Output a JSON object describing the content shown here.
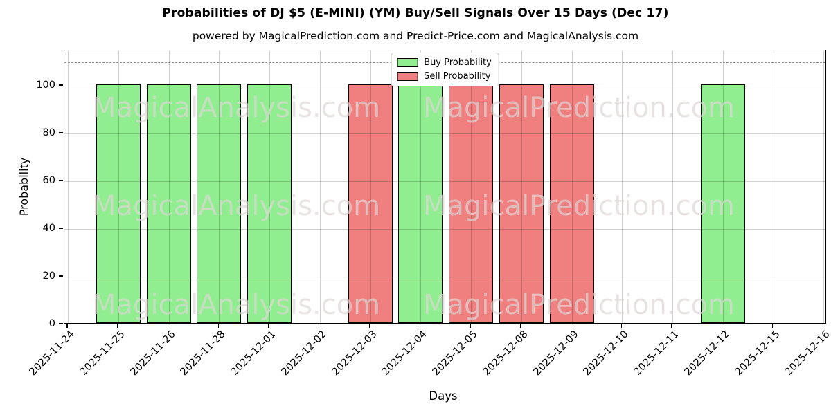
{
  "chart_data": {
    "type": "bar",
    "title": "Probabilities of DJ $5 (E-MINI) (YM) Buy/Sell Signals Over 15 Days (Dec 17)",
    "subtitle": "powered by MagicalPrediction.com and Predict-Price.com and MagicalAnalysis.com",
    "xlabel": "Days",
    "ylabel": "Probability",
    "categories": [
      "2025-11-24",
      "2025-11-25",
      "2025-11-26",
      "2025-11-28",
      "2025-12-01",
      "2025-12-02",
      "2025-12-03",
      "2025-12-04",
      "2025-12-05",
      "2025-12-08",
      "2025-12-09",
      "2025-12-10",
      "2025-12-11",
      "2025-12-12",
      "2025-12-15",
      "2025-12-16"
    ],
    "series": [
      {
        "name": "Buy Probability",
        "color": "#90EE90",
        "values": [
          null,
          100,
          100,
          100,
          100,
          null,
          null,
          100,
          null,
          null,
          null,
          null,
          null,
          100,
          null,
          null
        ]
      },
      {
        "name": "Sell Probability",
        "color": "#F08080",
        "values": [
          null,
          null,
          null,
          null,
          null,
          null,
          100,
          null,
          100,
          100,
          100,
          null,
          null,
          null,
          null,
          null
        ]
      }
    ],
    "yticks": [
      0,
      20,
      40,
      60,
      80,
      100
    ],
    "ylim": [
      0,
      114.8
    ],
    "threshold_line": {
      "y": 110,
      "style": "dashed",
      "color": "#8a8a8a"
    },
    "grid": true,
    "bar_edge_color": "#000000",
    "legend": {
      "position": "upper center"
    },
    "watermarks": {
      "left": "MagicalAnalysis.com",
      "right": "MagicalPrediction.com",
      "rows": 3
    }
  }
}
